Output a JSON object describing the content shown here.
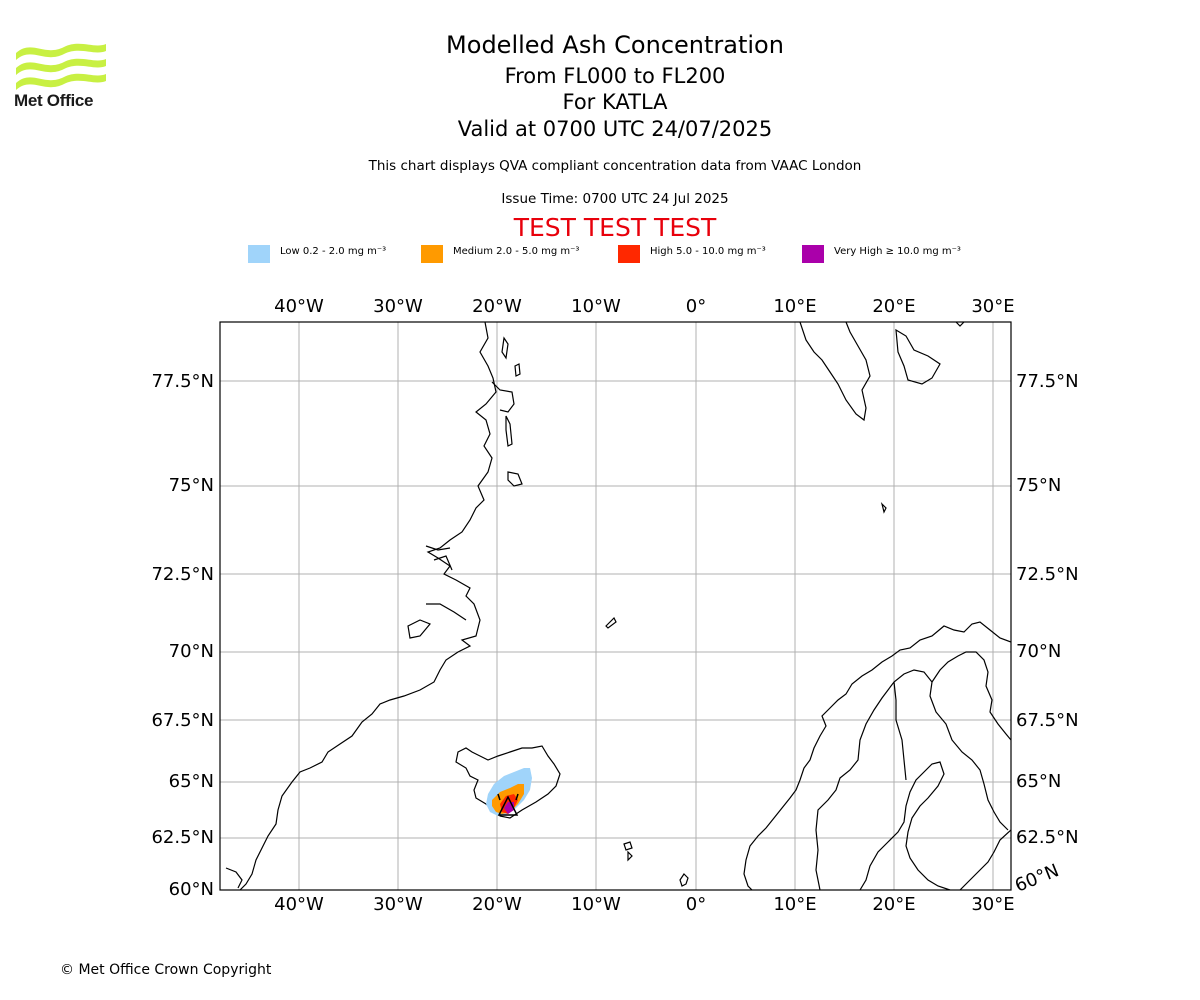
{
  "logo": {
    "text": "Met Office",
    "color": "#c8f043"
  },
  "title": "Modelled Ash Concentration",
  "flight_levels": "From FL000 to FL200",
  "volcano": "For KATLA",
  "valid_time": "Valid at 0700 UTC 24/07/2025",
  "subtitle": "This chart displays QVA compliant concentration data from VAAC London",
  "issue_time": "Issue Time: 0700 UTC 24 Jul 2025",
  "test_banner": "TEST TEST TEST",
  "legend": [
    {
      "label": "Low 0.2 - 2.0 mg m⁻³",
      "color": "#a0d4fa"
    },
    {
      "label": "Medium 2.0 - 5.0 mg m⁻³",
      "color": "#ff9a00"
    },
    {
      "label": "High 5.0 - 10.0 mg m⁻³",
      "color": "#ff2800"
    },
    {
      "label": "Very High ≥ 10.0 mg m⁻³",
      "color": "#aa00aa"
    }
  ],
  "map": {
    "lon_ticks": [
      "40°W",
      "30°W",
      "20°W",
      "10°W",
      "0°",
      "10°E",
      "20°E",
      "30°E"
    ],
    "lat_ticks": [
      "77.5°N",
      "75°N",
      "72.5°N",
      "70°N",
      "67.5°N",
      "65°N",
      "62.5°N",
      "60°N"
    ],
    "corner_label": "60°N"
  },
  "copyright": "© Met Office Crown Copyright"
}
